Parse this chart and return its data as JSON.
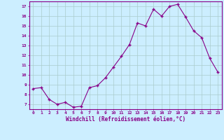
{
  "x": [
    0,
    1,
    2,
    3,
    4,
    5,
    6,
    7,
    8,
    9,
    10,
    11,
    12,
    13,
    14,
    15,
    16,
    17,
    18,
    19,
    20,
    21,
    22,
    23
  ],
  "y": [
    8.6,
    8.7,
    7.5,
    7.0,
    7.2,
    6.7,
    6.8,
    8.7,
    8.9,
    9.7,
    10.8,
    11.9,
    13.1,
    15.3,
    15.0,
    16.7,
    16.0,
    17.0,
    17.2,
    15.9,
    14.5,
    13.8,
    11.7,
    10.3
  ],
  "line_color": "#880088",
  "marker_color": "#880088",
  "bg_color": "#cceeff",
  "grid_color": "#aacccc",
  "xlabel": "Windchill (Refroidissement éolien,°C)",
  "xlabel_color": "#880088",
  "xtick_labels": [
    "0",
    "1",
    "2",
    "3",
    "4",
    "5",
    "6",
    "7",
    "8",
    "9",
    "10",
    "11",
    "12",
    "13",
    "14",
    "15",
    "16",
    "17",
    "18",
    "19",
    "20",
    "21",
    "22",
    "23"
  ],
  "ytick_labels": [
    "7",
    "8",
    "9",
    "10",
    "11",
    "12",
    "13",
    "14",
    "15",
    "16",
    "17"
  ],
  "yticks": [
    7,
    8,
    9,
    10,
    11,
    12,
    13,
    14,
    15,
    16,
    17
  ],
  "ylim": [
    6.5,
    17.5
  ],
  "xlim": [
    -0.5,
    23.5
  ],
  "tick_color": "#880088",
  "border_color": "#880088"
}
